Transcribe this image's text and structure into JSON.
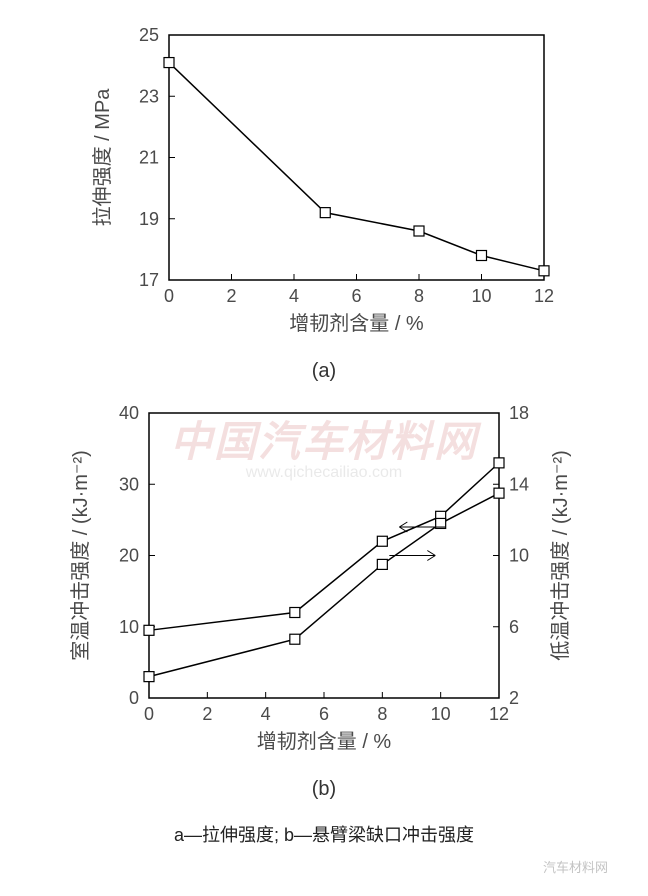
{
  "chart_a": {
    "type": "line",
    "x": [
      0,
      5,
      8,
      10,
      12
    ],
    "y": [
      24.1,
      19.2,
      18.6,
      17.8,
      17.3
    ],
    "xlabel": "增韧剂含量 / %",
    "ylabel": "拉伸强度 / MPa",
    "xlim": [
      0,
      12
    ],
    "ylim": [
      17,
      25
    ],
    "xtick_step": 2,
    "ytick_step": 2,
    "line_color": "#000000",
    "marker_fill": "#ffffff",
    "marker_stroke": "#000000",
    "marker_size": 5,
    "line_width": 1.5,
    "background_color": "#ffffff",
    "sub_label": "(a)",
    "label_fontsize": 20,
    "tick_fontsize": 18
  },
  "chart_b": {
    "type": "line",
    "x": [
      0,
      5,
      8,
      10,
      12
    ],
    "series": [
      {
        "name": "room_temp",
        "y": [
          9.5,
          12,
          22,
          25.5,
          33
        ],
        "axis": "left"
      },
      {
        "name": "low_temp",
        "y": [
          3.2,
          5.3,
          9.5,
          11.8,
          13.5
        ],
        "axis": "right"
      }
    ],
    "xlabel": "增韧剂含量 / %",
    "ylabel_left": "室温冲击强度 / (kJ·m⁻²)",
    "ylabel_right": "低温冲击强度 / (kJ·m⁻²)",
    "xlim": [
      0,
      12
    ],
    "ylim_left": [
      0,
      40
    ],
    "ylim_right": [
      2,
      18
    ],
    "xtick_step": 2,
    "ytick_left_step": 10,
    "ytick_right_step": 4,
    "line_color": "#000000",
    "marker_fill": "#ffffff",
    "marker_stroke": "#000000",
    "marker_size": 5,
    "line_width": 1.5,
    "background_color": "#ffffff",
    "sub_label": "(b)",
    "label_fontsize": 20,
    "tick_fontsize": 18
  },
  "caption": "a—拉伸强度; b—悬臂梁缺口冲击强度",
  "watermark": {
    "main": "中国汽车材料网",
    "sub": "www.qichecailiao.com"
  },
  "footer": "汽车材料网"
}
